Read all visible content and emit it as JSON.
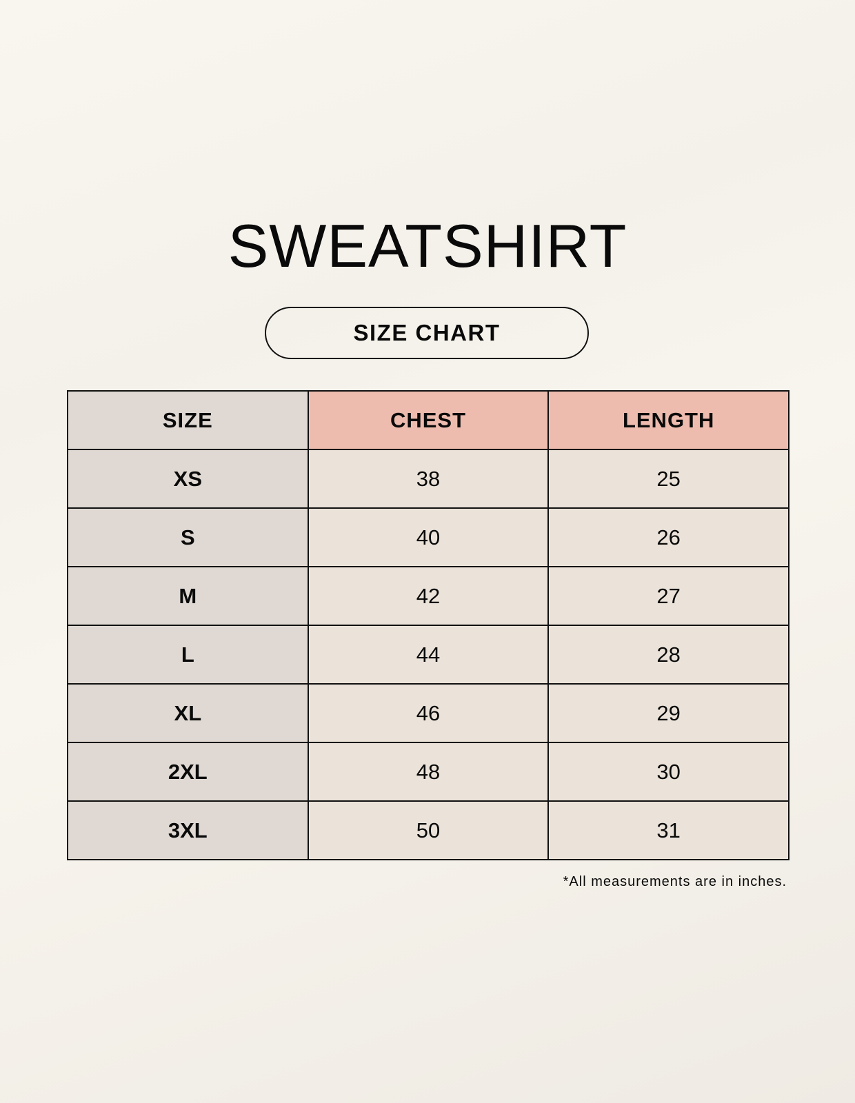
{
  "title": "SWEATSHIRT",
  "subtitle": "SIZE CHART",
  "colors": {
    "size_column": "#e0d9d3",
    "header_accent": "#edbcaf",
    "value_cells": "#ebe3d9"
  },
  "table": {
    "headers": [
      "SIZE",
      "CHEST",
      "LENGTH"
    ],
    "rows": [
      [
        "XS",
        "38",
        "25"
      ],
      [
        "S",
        "40",
        "26"
      ],
      [
        "M",
        "42",
        "27"
      ],
      [
        "L",
        "44",
        "28"
      ],
      [
        "XL",
        "46",
        "29"
      ],
      [
        "2XL",
        "48",
        "30"
      ],
      [
        "3XL",
        "50",
        "31"
      ]
    ]
  },
  "footnote": "*All measurements are in inches."
}
